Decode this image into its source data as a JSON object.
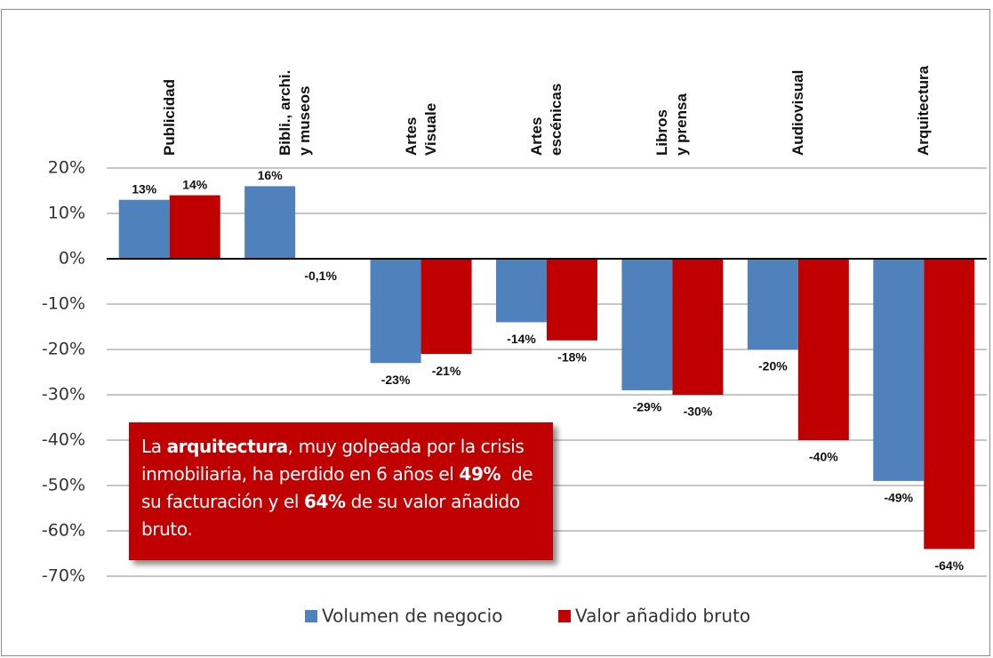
{
  "chart_data": {
    "type": "bar",
    "categories": [
      "Publicidad",
      "Bibli., archi.\ny museos",
      "Artes\nVisuale",
      "Artes\nescénicas",
      "Libros\ny prensa",
      "Audiovisual",
      "Arquitectura"
    ],
    "series": [
      {
        "name": "Volumen de negocio",
        "color": "#4f81bd",
        "values": [
          13,
          16,
          -23,
          -14,
          -29,
          -20,
          -49
        ],
        "value_labels": [
          "13%",
          "16%",
          "-23%",
          "-14%",
          "-29%",
          "-20%",
          "-49%"
        ]
      },
      {
        "name": "Valor añadido bruto",
        "color": "#c00000",
        "values": [
          14,
          -0.1,
          -21,
          -18,
          -30,
          -40,
          -64
        ],
        "value_labels": [
          "14%",
          "-0,1%",
          "-21%",
          "-18%",
          "-30%",
          "-40%",
          "-64%"
        ]
      }
    ],
    "ylim": [
      -70,
      20
    ],
    "yticks": [
      {
        "value": 20,
        "label": "20%"
      },
      {
        "value": 10,
        "label": "10%"
      },
      {
        "value": 0,
        "label": "0%"
      },
      {
        "value": -10,
        "label": "-10%"
      },
      {
        "value": -20,
        "label": "-20%"
      },
      {
        "value": -30,
        "label": "-30%"
      },
      {
        "value": -40,
        "label": "-40%"
      },
      {
        "value": -50,
        "label": "-50%"
      },
      {
        "value": -60,
        "label": "-60%"
      },
      {
        "value": -70,
        "label": "-70%"
      }
    ],
    "grid": true,
    "annotation": [
      {
        "text": "La ",
        "bold": false
      },
      {
        "text": "arquitectura",
        "bold": true
      },
      {
        "text": ", muy golpeada por la crisis inmobiliaria, ha perdido en 6 años el ",
        "bold": false
      },
      {
        "text": "49%",
        "bold": true
      },
      {
        "text": "  de su facturación y el ",
        "bold": false
      },
      {
        "text": "64%",
        "bold": true
      },
      {
        "text": " de su valor añadido bruto.",
        "bold": false
      }
    ]
  }
}
